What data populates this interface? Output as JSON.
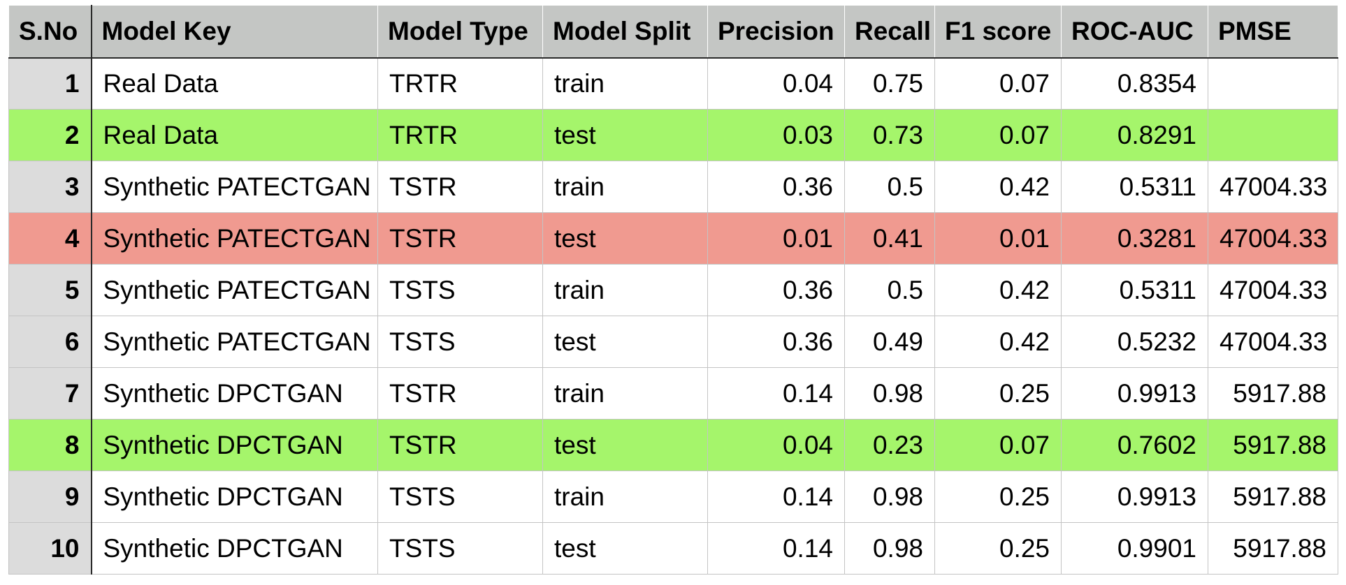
{
  "table": {
    "headers": [
      "S.No",
      "Model Key",
      "Model Type",
      "Model Split",
      "Precision",
      "Recall",
      "F1 score",
      "ROC-AUC",
      "PMSE"
    ],
    "rows": [
      {
        "sno": "1",
        "model_key": "Real Data",
        "model_type": "TRTR",
        "model_split": "train",
        "precision": "0.04",
        "recall": "0.75",
        "f1": "0.07",
        "roc_auc": "0.8354",
        "pmse": "",
        "highlight": "none"
      },
      {
        "sno": "2",
        "model_key": "Real Data",
        "model_type": "TRTR",
        "model_split": "test",
        "precision": "0.03",
        "recall": "0.73",
        "f1": "0.07",
        "roc_auc": "0.8291",
        "pmse": "",
        "highlight": "green"
      },
      {
        "sno": "3",
        "model_key": "Synthetic PATECTGAN",
        "model_type": "TSTR",
        "model_split": "train",
        "precision": "0.36",
        "recall": "0.5",
        "f1": "0.42",
        "roc_auc": "0.5311",
        "pmse": "47004.33",
        "highlight": "none"
      },
      {
        "sno": "4",
        "model_key": "Synthetic PATECTGAN",
        "model_type": "TSTR",
        "model_split": "test",
        "precision": "0.01",
        "recall": "0.41",
        "f1": "0.01",
        "roc_auc": "0.3281",
        "pmse": "47004.33",
        "highlight": "red"
      },
      {
        "sno": "5",
        "model_key": "Synthetic PATECTGAN",
        "model_type": "TSTS",
        "model_split": "train",
        "precision": "0.36",
        "recall": "0.5",
        "f1": "0.42",
        "roc_auc": "0.5311",
        "pmse": "47004.33",
        "highlight": "none"
      },
      {
        "sno": "6",
        "model_key": "Synthetic PATECTGAN",
        "model_type": "TSTS",
        "model_split": "test",
        "precision": "0.36",
        "recall": "0.49",
        "f1": "0.42",
        "roc_auc": "0.5232",
        "pmse": "47004.33",
        "highlight": "none"
      },
      {
        "sno": "7",
        "model_key": "Synthetic DPCTGAN",
        "model_type": "TSTR",
        "model_split": "train",
        "precision": "0.14",
        "recall": "0.98",
        "f1": "0.25",
        "roc_auc": "0.9913",
        "pmse": "5917.88",
        "highlight": "none"
      },
      {
        "sno": "8",
        "model_key": "Synthetic DPCTGAN",
        "model_type": "TSTR",
        "model_split": "test",
        "precision": "0.04",
        "recall": "0.23",
        "f1": "0.07",
        "roc_auc": "0.7602",
        "pmse": "5917.88",
        "highlight": "green"
      },
      {
        "sno": "9",
        "model_key": "Synthetic DPCTGAN",
        "model_type": "TSTS",
        "model_split": "train",
        "precision": "0.14",
        "recall": "0.98",
        "f1": "0.25",
        "roc_auc": "0.9913",
        "pmse": "5917.88",
        "highlight": "none"
      },
      {
        "sno": "10",
        "model_key": "Synthetic DPCTGAN",
        "model_type": "TSTS",
        "model_split": "test",
        "precision": "0.14",
        "recall": "0.98",
        "f1": "0.25",
        "roc_auc": "0.9901",
        "pmse": "5917.88",
        "highlight": "none"
      }
    ]
  },
  "colors": {
    "header_bg": "#c4c6c4",
    "sno_bg": "#dcdcdc",
    "highlight_green": "#a5f56b",
    "highlight_red": "#f09a90"
  }
}
